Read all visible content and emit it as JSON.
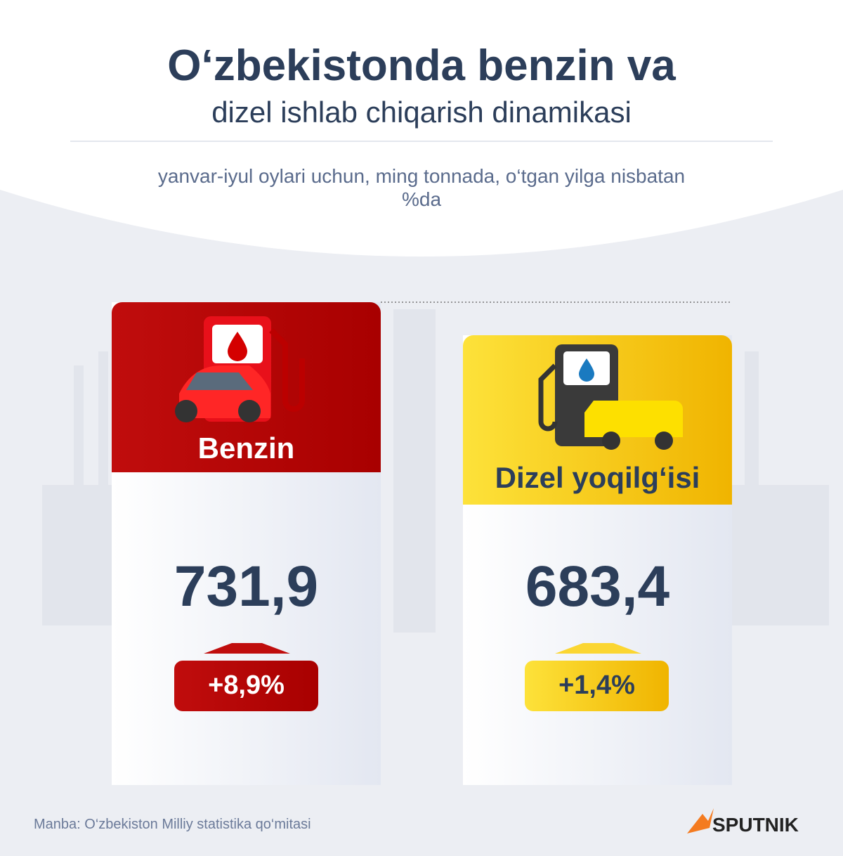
{
  "header": {
    "title": "O‘zbekistonda benzin va",
    "subtitle": "dizel ishlab chiqarish dinamikasi",
    "note": "yanvar-iyul oylari uchun, ming tonnada, o‘tgan yilga nisbatan %da"
  },
  "cards": [
    {
      "label": "Benzin",
      "value": "731,9",
      "change": "+8,9%"
    },
    {
      "label": "Dizel yoqilg‘isi",
      "value": "683,4",
      "change": "+1,4%"
    }
  ],
  "footer": {
    "source": "Manba: O‘zbekiston Milliy statistika qo‘mitasi",
    "brand": "SPUTNIK"
  }
}
